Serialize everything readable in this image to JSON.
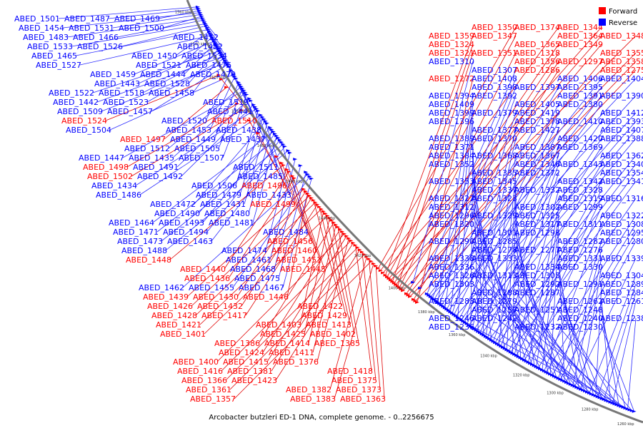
{
  "caption": "Arcobacter butzleri ED-1 DNA, complete genome. - 0..2256675",
  "legend": [
    {
      "label": "Forward",
      "color": "#ff0000"
    },
    {
      "label": "Reverse",
      "color": "#0000ff"
    }
  ],
  "colors": {
    "forward": "#ff0000",
    "reverse": "#0000ff",
    "backbone": "#777777",
    "forward_line": "#e00000",
    "reverse_line": "#2a2aff"
  },
  "scale_ticks": [
    "1560 kbp",
    "1540 kbp",
    "1520 kbp",
    "1500 kbp",
    "1480 kbp",
    "1460 kbp",
    "1440 kbp",
    "1420 kbp",
    "1400 kbp",
    "1380 kbp",
    "1360 kbp",
    "1340 kbp",
    "1320 kbp",
    "1300 kbp",
    "1280 kbp",
    "1260 kbp"
  ],
  "genes": [
    {
      "id": "ABED_1501",
      "strand": "reverse"
    },
    {
      "id": "ABED_1487",
      "strand": "reverse"
    },
    {
      "id": "ABED_1469",
      "strand": "reverse"
    },
    {
      "id": "ABED_1454",
      "strand": "reverse"
    },
    {
      "id": "ABED_1531",
      "strand": "reverse"
    },
    {
      "id": "ABED_1500",
      "strand": "reverse"
    },
    {
      "id": "ABED_1483",
      "strand": "reverse"
    },
    {
      "id": "ABED_1466",
      "strand": "reverse"
    },
    {
      "id": "ABED_1452",
      "strand": "reverse"
    },
    {
      "id": "ABED_1533",
      "strand": "reverse"
    },
    {
      "id": "ABED_1526",
      "strand": "reverse"
    },
    {
      "id": "ABED_1482",
      "strand": "reverse"
    },
    {
      "id": "ABED_1465",
      "strand": "reverse"
    },
    {
      "id": "ABED_1450",
      "strand": "reverse"
    },
    {
      "id": "ABED_1534",
      "strand": "reverse"
    },
    {
      "id": "ABED_1527",
      "strand": "reverse"
    },
    {
      "id": "ABED_1521",
      "strand": "reverse"
    },
    {
      "id": "ABED_1476",
      "strand": "reverse"
    },
    {
      "id": "ABED_1459",
      "strand": "reverse"
    },
    {
      "id": "ABED_1444",
      "strand": "reverse"
    },
    {
      "id": "ABED_1470",
      "strand": "reverse"
    },
    {
      "id": "ABED_1443",
      "strand": "reverse"
    },
    {
      "id": "ABED_1528",
      "strand": "reverse"
    },
    {
      "id": "ABED_1522",
      "strand": "reverse"
    },
    {
      "id": "ABED_1518",
      "strand": "reverse"
    },
    {
      "id": "ABED_1458",
      "strand": "reverse"
    },
    {
      "id": "ABED_1442",
      "strand": "reverse"
    },
    {
      "id": "ABED_1523",
      "strand": "reverse"
    },
    {
      "id": "ABED_1519",
      "strand": "reverse"
    },
    {
      "id": "ABED_1509",
      "strand": "reverse"
    },
    {
      "id": "ABED_1457",
      "strand": "reverse"
    },
    {
      "id": "ABED_1441",
      "strand": "reverse"
    },
    {
      "id": "ABED_1524",
      "strand": "forward"
    },
    {
      "id": "ABED_1520",
      "strand": "reverse"
    },
    {
      "id": "ABED_1510",
      "strand": "forward"
    },
    {
      "id": "ABED_1504",
      "strand": "reverse"
    },
    {
      "id": "ABED_1453",
      "strand": "reverse"
    },
    {
      "id": "ABED_1438",
      "strand": "reverse"
    },
    {
      "id": "ABED_1497",
      "strand": "forward"
    },
    {
      "id": "ABED_1449",
      "strand": "reverse"
    },
    {
      "id": "ABED_1437",
      "strand": "reverse"
    },
    {
      "id": "ABED_1512",
      "strand": "reverse"
    },
    {
      "id": "ABED_1505",
      "strand": "reverse"
    },
    {
      "id": "ABED_1447",
      "strand": "reverse"
    },
    {
      "id": "ABED_1435",
      "strand": "reverse"
    },
    {
      "id": "ABED_1507",
      "strand": "reverse"
    },
    {
      "id": "ABED_1498",
      "strand": "forward"
    },
    {
      "id": "ABED_1491",
      "strand": "reverse"
    },
    {
      "id": "ABED_1511",
      "strand": "reverse"
    },
    {
      "id": "ABED_1502",
      "strand": "forward"
    },
    {
      "id": "ABED_1492",
      "strand": "reverse"
    },
    {
      "id": "ABED_1485",
      "strand": "reverse"
    },
    {
      "id": "ABED_1434",
      "strand": "reverse"
    },
    {
      "id": "ABED_1506",
      "strand": "reverse"
    },
    {
      "id": "ABED_1496",
      "strand": "forward"
    },
    {
      "id": "ABED_1486",
      "strand": "reverse"
    },
    {
      "id": "ABED_1479",
      "strand": "reverse"
    },
    {
      "id": "ABED_1433",
      "strand": "reverse"
    },
    {
      "id": "ABED_1472",
      "strand": "reverse"
    },
    {
      "id": "ABED_1431",
      "strand": "reverse"
    },
    {
      "id": "ABED_1499",
      "strand": "forward"
    },
    {
      "id": "ABED_1490",
      "strand": "reverse"
    },
    {
      "id": "ABED_1480",
      "strand": "reverse"
    },
    {
      "id": "ABED_1464",
      "strand": "reverse"
    },
    {
      "id": "ABED_1493",
      "strand": "reverse"
    },
    {
      "id": "ABED_1481",
      "strand": "reverse"
    },
    {
      "id": "ABED_1471",
      "strand": "reverse"
    },
    {
      "id": "ABED_1494",
      "strand": "reverse"
    },
    {
      "id": "ABED_1484",
      "strand": "reverse"
    },
    {
      "id": "ABED_1473",
      "strand": "reverse"
    },
    {
      "id": "ABED_1463",
      "strand": "reverse"
    },
    {
      "id": "ABED_1456",
      "strand": "forward"
    },
    {
      "id": "ABED_1488",
      "strand": "reverse"
    },
    {
      "id": "ABED_1474",
      "strand": "reverse"
    },
    {
      "id": "ABED_1460",
      "strand": "forward"
    },
    {
      "id": "ABED_1448",
      "strand": "forward"
    },
    {
      "id": "ABED_1461",
      "strand": "reverse"
    },
    {
      "id": "ABED_1451",
      "strand": "forward"
    },
    {
      "id": "ABED_1440",
      "strand": "forward"
    },
    {
      "id": "ABED_1468",
      "strand": "reverse"
    },
    {
      "id": "ABED_1445",
      "strand": "forward"
    },
    {
      "id": "ABED_1436",
      "strand": "forward"
    },
    {
      "id": "ABED_1475",
      "strand": "reverse"
    },
    {
      "id": "ABED_1462",
      "strand": "reverse"
    },
    {
      "id": "ABED_1455",
      "strand": "reverse"
    },
    {
      "id": "ABED_1467",
      "strand": "reverse"
    },
    {
      "id": "ABED_1439",
      "strand": "forward"
    },
    {
      "id": "ABED_1430",
      "strand": "forward"
    },
    {
      "id": "ABED_1446",
      "strand": "forward"
    },
    {
      "id": "ABED_1426",
      "strand": "forward"
    },
    {
      "id": "ABED_1432",
      "strand": "forward"
    },
    {
      "id": "ABED_1422",
      "strand": "forward"
    },
    {
      "id": "ABED_1428",
      "strand": "forward"
    },
    {
      "id": "ABED_1417",
      "strand": "forward"
    },
    {
      "id": "ABED_1429",
      "strand": "forward"
    },
    {
      "id": "ABED_1421",
      "strand": "forward"
    },
    {
      "id": "ABED_1403",
      "strand": "forward"
    },
    {
      "id": "ABED_1413",
      "strand": "forward"
    },
    {
      "id": "ABED_1401",
      "strand": "forward"
    },
    {
      "id": "ABED_1425",
      "strand": "forward"
    },
    {
      "id": "ABED_1402",
      "strand": "forward"
    },
    {
      "id": "ABED_1386",
      "strand": "forward"
    },
    {
      "id": "ABED_1414",
      "strand": "forward"
    },
    {
      "id": "ABED_1385",
      "strand": "forward"
    },
    {
      "id": "ABED_1424",
      "strand": "forward"
    },
    {
      "id": "ABED_1411",
      "strand": "forward"
    },
    {
      "id": "ABED_1400",
      "strand": "forward"
    },
    {
      "id": "ABED_1415",
      "strand": "forward"
    },
    {
      "id": "ABED_1376",
      "strand": "forward"
    },
    {
      "id": "ABED_1416",
      "strand": "forward"
    },
    {
      "id": "ABED_1381",
      "strand": "forward"
    },
    {
      "id": "ABED_1418",
      "strand": "forward"
    },
    {
      "id": "ABED_1366",
      "strand": "forward"
    },
    {
      "id": "ABED_1423",
      "strand": "forward"
    },
    {
      "id": "ABED_1375",
      "strand": "forward"
    },
    {
      "id": "ABED_1361",
      "strand": "forward"
    },
    {
      "id": "ABED_1382",
      "strand": "forward"
    },
    {
      "id": "ABED_1373",
      "strand": "forward"
    },
    {
      "id": "ABED_1357",
      "strand": "forward"
    },
    {
      "id": "ABED_1383",
      "strand": "forward"
    },
    {
      "id": "ABED_1363",
      "strand": "forward"
    },
    {
      "id": "ABED_1350",
      "strand": "forward"
    },
    {
      "id": "ABED_1374",
      "strand": "forward"
    },
    {
      "id": "ABED_1344",
      "strand": "forward"
    },
    {
      "id": "ABED_1359",
      "strand": "forward"
    },
    {
      "id": "ABED_1347",
      "strand": "forward"
    },
    {
      "id": "ABED_1364",
      "strand": "forward"
    },
    {
      "id": "ABED_1348",
      "strand": "forward"
    },
    {
      "id": "ABED_1324",
      "strand": "forward"
    },
    {
      "id": "ABED_1365",
      "strand": "forward"
    },
    {
      "id": "ABED_1349",
      "strand": "forward"
    },
    {
      "id": "ABED_1321",
      "strand": "forward"
    },
    {
      "id": "ABED_1351",
      "strand": "forward"
    },
    {
      "id": "ABED_1318",
      "strand": "forward"
    },
    {
      "id": "ABED_1355",
      "strand": "forward"
    },
    {
      "id": "ABED_1310",
      "strand": "reverse"
    },
    {
      "id": "ABED_1356",
      "strand": "forward"
    },
    {
      "id": "ABED_1297",
      "strand": "forward"
    },
    {
      "id": "ABED_1358",
      "strand": "forward"
    },
    {
      "id": "ABED_1307",
      "strand": "reverse"
    },
    {
      "id": "ABED_1286",
      "strand": "forward"
    },
    {
      "id": "ABED_1275",
      "strand": "forward"
    },
    {
      "id": "ABED_1272",
      "strand": "forward"
    },
    {
      "id": "ABED_1408",
      "strand": "reverse"
    },
    {
      "id": "ABED_1406",
      "strand": "reverse"
    },
    {
      "id": "ABED_1404",
      "strand": "reverse"
    },
    {
      "id": "ABED_1398",
      "strand": "reverse"
    },
    {
      "id": "ABED_1397",
      "strand": "reverse"
    },
    {
      "id": "ABED_1395",
      "strand": "reverse"
    },
    {
      "id": "ABED_1394",
      "strand": "reverse"
    },
    {
      "id": "ABED_1392",
      "strand": "reverse"
    },
    {
      "id": "ABED_1391",
      "strand": "reverse"
    },
    {
      "id": "ABED_1390",
      "strand": "reverse"
    },
    {
      "id": "ABED_1409",
      "strand": "reverse"
    },
    {
      "id": "ABED_1405",
      "strand": "reverse"
    },
    {
      "id": "ABED_1380",
      "strand": "reverse"
    },
    {
      "id": "ABED_1399",
      "strand": "reverse"
    },
    {
      "id": "ABED_1379",
      "strand": "reverse"
    },
    {
      "id": "ABED_1419",
      "strand": "reverse"
    },
    {
      "id": "ABED_1412",
      "strand": "reverse"
    },
    {
      "id": "ABED_1396",
      "strand": "reverse"
    },
    {
      "id": "ABED_1378",
      "strand": "reverse"
    },
    {
      "id": "ABED_1410",
      "strand": "reverse"
    },
    {
      "id": "ABED_1393",
      "strand": "reverse"
    },
    {
      "id": "ABED_1377",
      "strand": "reverse"
    },
    {
      "id": "ABED_1427",
      "strand": "reverse"
    },
    {
      "id": "ABED_1407",
      "strand": "reverse"
    },
    {
      "id": "ABED_1389",
      "strand": "reverse"
    },
    {
      "id": "ABED_1370",
      "strand": "reverse"
    },
    {
      "id": "ABED_1420",
      "strand": "reverse"
    },
    {
      "id": "ABED_1388",
      "strand": "reverse"
    },
    {
      "id": "ABED_1371",
      "strand": "reverse"
    },
    {
      "id": "ABED_1387",
      "strand": "reverse"
    },
    {
      "id": "ABED_1369",
      "strand": "reverse"
    },
    {
      "id": "ABED_1384",
      "strand": "reverse"
    },
    {
      "id": "ABED_1368",
      "strand": "reverse"
    },
    {
      "id": "ABED_1367",
      "strand": "reverse"
    },
    {
      "id": "ABED_1362",
      "strand": "reverse"
    },
    {
      "id": "ABED_1352",
      "strand": "reverse"
    },
    {
      "id": "ABED_1346",
      "strand": "reverse"
    },
    {
      "id": "ABED_1343",
      "strand": "reverse"
    },
    {
      "id": "ABED_1340",
      "strand": "reverse"
    },
    {
      "id": "ABED_1335",
      "strand": "reverse"
    },
    {
      "id": "ABED_1372",
      "strand": "reverse"
    },
    {
      "id": "ABED_1354",
      "strand": "reverse"
    },
    {
      "id": "ABED_1353",
      "strand": "reverse"
    },
    {
      "id": "ABED_1345",
      "strand": "reverse"
    },
    {
      "id": "ABED_1342",
      "strand": "reverse"
    },
    {
      "id": "ABED_1341",
      "strand": "reverse"
    },
    {
      "id": "ABED_1337",
      "strand": "reverse"
    },
    {
      "id": "ABED_1332",
      "strand": "reverse"
    },
    {
      "id": "ABED_1328",
      "strand": "reverse"
    },
    {
      "id": "ABED_1327",
      "strand": "reverse"
    },
    {
      "id": "ABED_1323",
      "strand": "reverse"
    },
    {
      "id": "ABED_1319",
      "strand": "reverse"
    },
    {
      "id": "ABED_1316",
      "strand": "reverse"
    },
    {
      "id": "ABED_1312",
      "strand": "reverse"
    },
    {
      "id": "ABED_1302",
      "strand": "reverse"
    },
    {
      "id": "ABED_1299",
      "strand": "reverse"
    },
    {
      "id": "ABED_1296",
      "strand": "reverse"
    },
    {
      "id": "ABED_1329",
      "strand": "reverse"
    },
    {
      "id": "ABED_1325",
      "strand": "reverse"
    },
    {
      "id": "ABED_1322",
      "strand": "reverse"
    },
    {
      "id": "ABED_1320",
      "strand": "reverse"
    },
    {
      "id": "ABED_1317",
      "strand": "reverse"
    },
    {
      "id": "ABED_1311",
      "strand": "reverse"
    },
    {
      "id": "ABED_1308",
      "strand": "reverse"
    },
    {
      "id": "ABED_1301",
      "strand": "reverse"
    },
    {
      "id": "ABED_1298",
      "strand": "reverse"
    },
    {
      "id": "ABED_1295",
      "strand": "reverse"
    },
    {
      "id": "ABED_1290",
      "strand": "reverse"
    },
    {
      "id": "ABED_1285",
      "strand": "reverse"
    },
    {
      "id": "ABED_1282",
      "strand": "reverse"
    },
    {
      "id": "ABED_1280",
      "strand": "reverse"
    },
    {
      "id": "ABED_1278",
      "strand": "reverse"
    },
    {
      "id": "ABED_1277",
      "strand": "reverse"
    },
    {
      "id": "ABED_1276",
      "strand": "reverse"
    },
    {
      "id": "ABED_1338",
      "strand": "reverse"
    },
    {
      "id": "ABED_1333",
      "strand": "reverse"
    },
    {
      "id": "ABED_1331",
      "strand": "reverse"
    },
    {
      "id": "ABED_1339",
      "strand": "reverse"
    },
    {
      "id": "ABED_1336",
      "strand": "reverse"
    },
    {
      "id": "ABED_1334",
      "strand": "reverse"
    },
    {
      "id": "ABED_1330",
      "strand": "reverse"
    },
    {
      "id": "ABED_1326",
      "strand": "reverse"
    },
    {
      "id": "ABED_1313",
      "strand": "reverse"
    },
    {
      "id": "ABED_1305",
      "strand": "reverse"
    },
    {
      "id": "ABED_1304",
      "strand": "reverse"
    },
    {
      "id": "ABED_1303",
      "strand": "reverse"
    },
    {
      "id": "ABED_1292",
      "strand": "reverse"
    },
    {
      "id": "ABED_1291",
      "strand": "reverse"
    },
    {
      "id": "ABED_1289",
      "strand": "reverse"
    },
    {
      "id": "ABED_1288",
      "strand": "reverse"
    },
    {
      "id": "ABED_1287",
      "strand": "reverse"
    },
    {
      "id": "ABED_1284",
      "strand": "reverse"
    },
    {
      "id": "ABED_1283",
      "strand": "reverse"
    },
    {
      "id": "ABED_1279",
      "strand": "reverse"
    },
    {
      "id": "ABED_1262",
      "strand": "reverse"
    },
    {
      "id": "ABED_1261",
      "strand": "reverse"
    },
    {
      "id": "ABED_1257",
      "strand": "reverse"
    },
    {
      "id": "ABED_1251",
      "strand": "reverse"
    },
    {
      "id": "ABED_1248",
      "strand": "reverse"
    },
    {
      "id": "ABED_1246",
      "strand": "reverse"
    },
    {
      "id": "ABED_1242",
      "strand": "reverse"
    },
    {
      "id": "ABED_1240",
      "strand": "reverse"
    },
    {
      "id": "ABED_1238",
      "strand": "reverse"
    },
    {
      "id": "ABED_1236",
      "strand": "reverse"
    },
    {
      "id": "ABED_1232",
      "strand": "reverse"
    },
    {
      "id": "ABED_1230",
      "strand": "reverse"
    }
  ]
}
